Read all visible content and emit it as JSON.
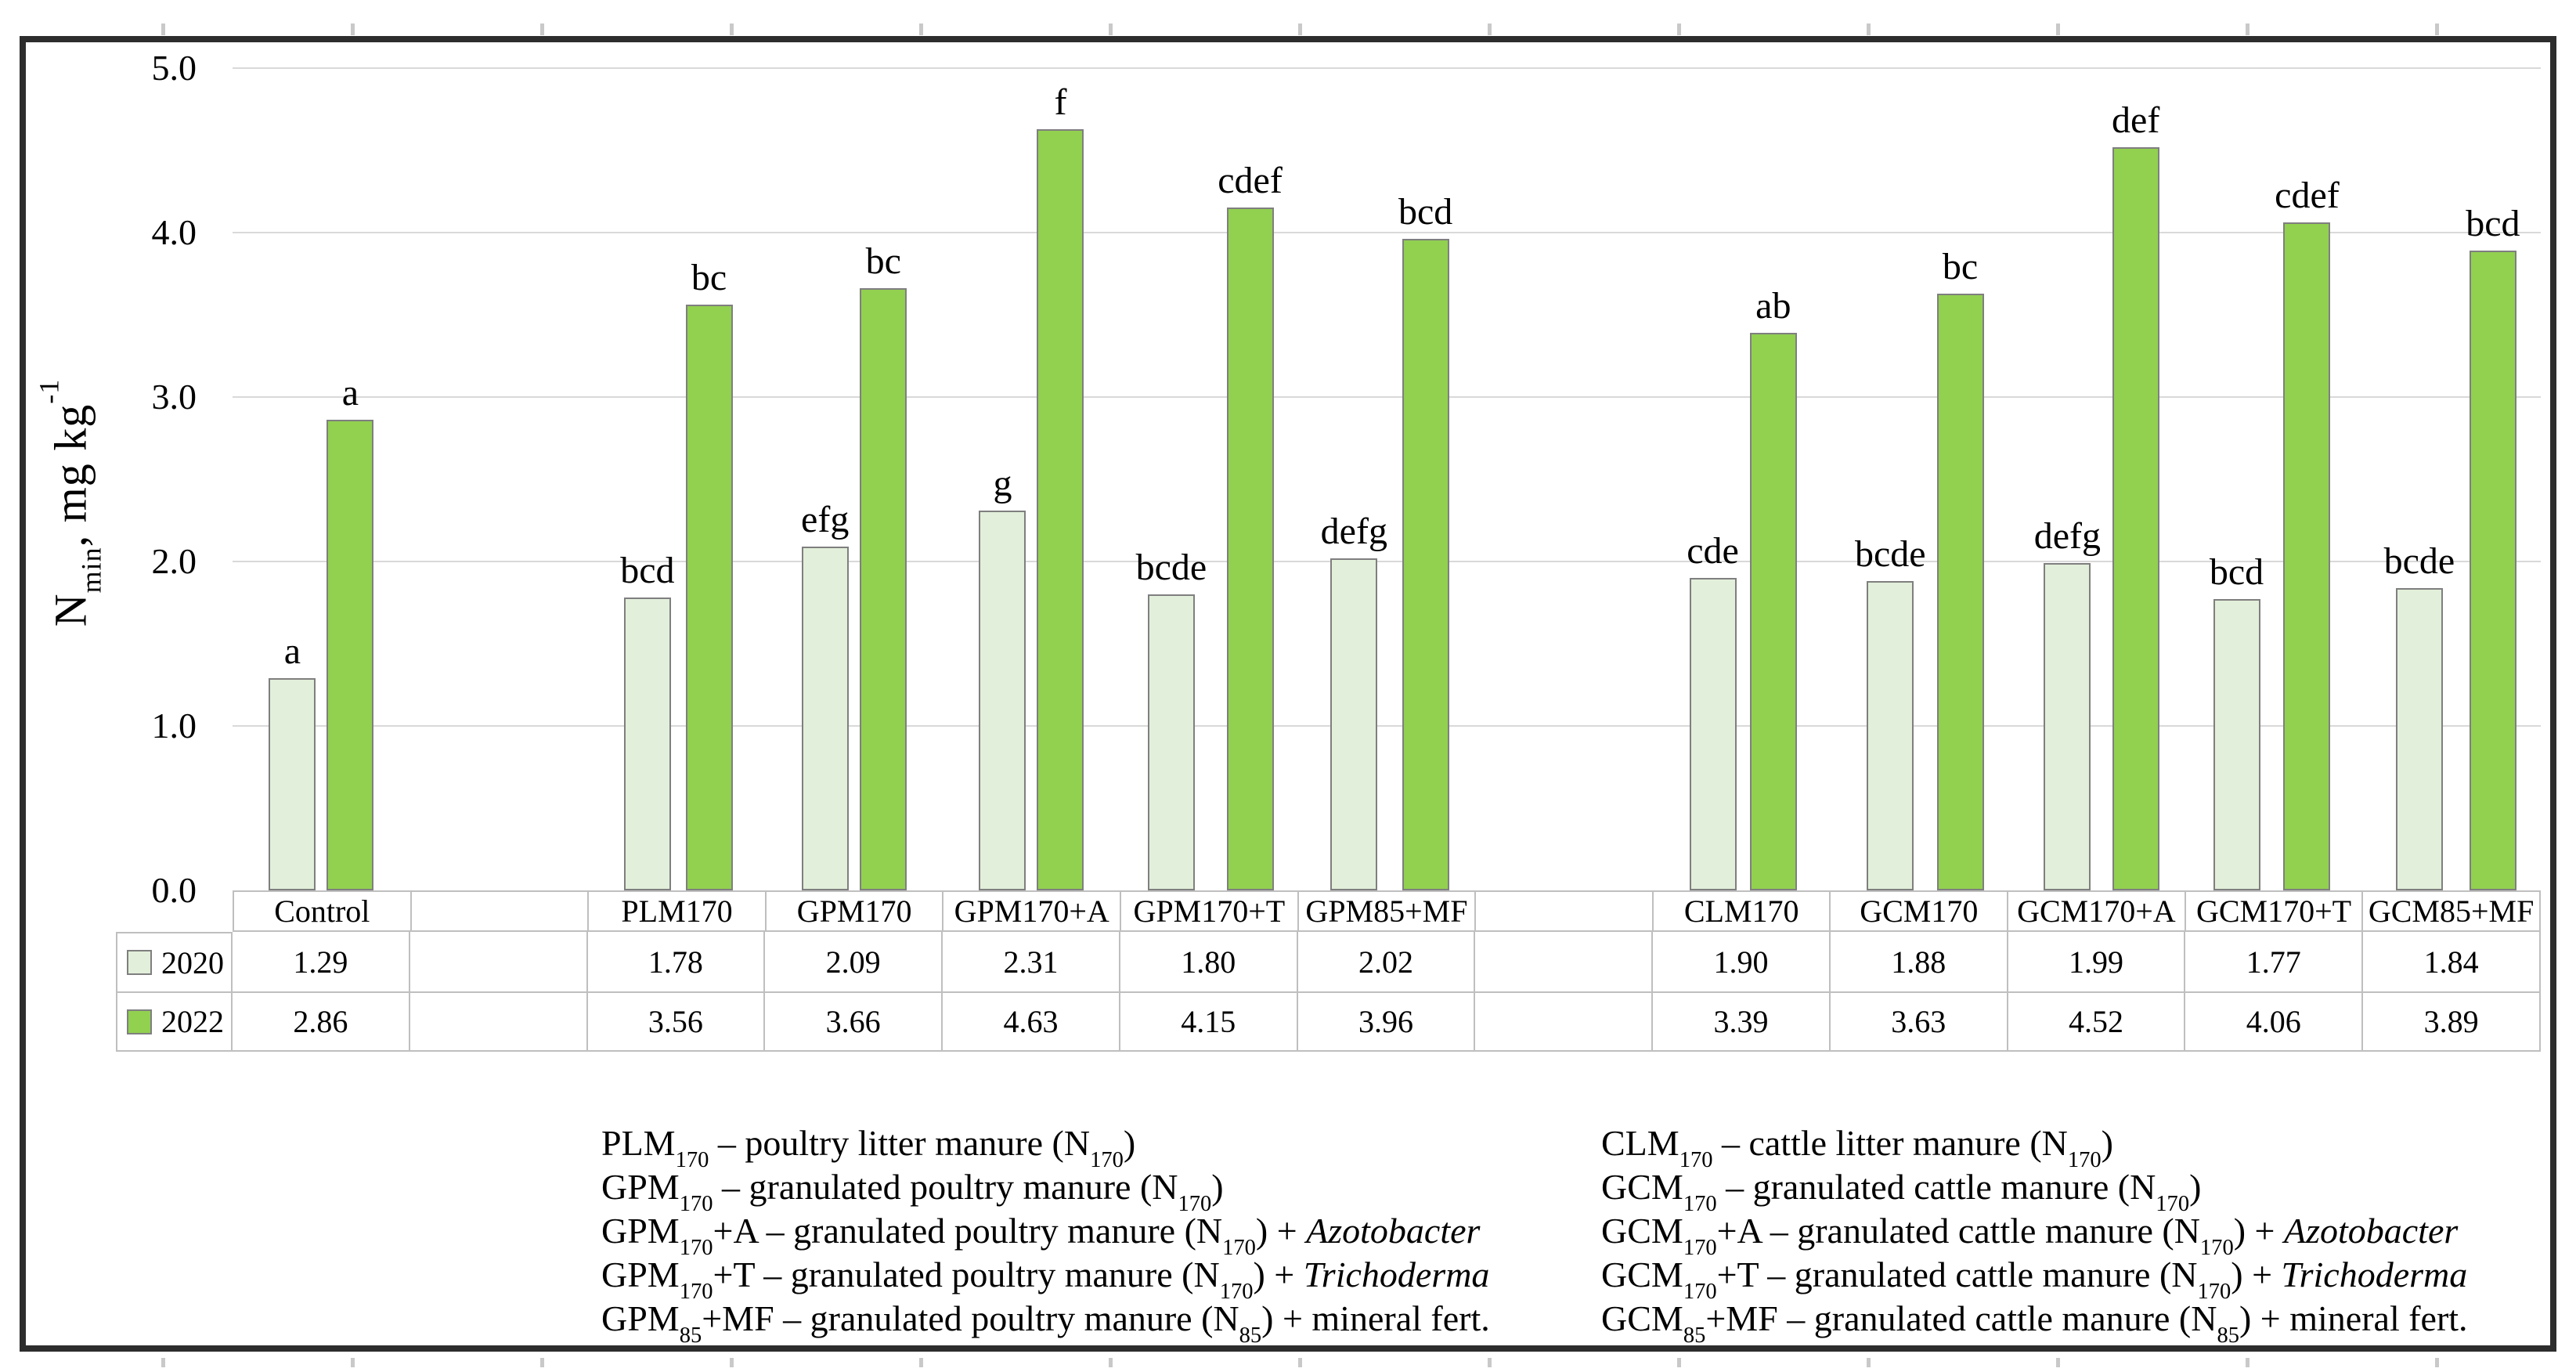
{
  "chart_data": {
    "type": "bar",
    "title": "",
    "ylabel_text": "Nmin, mg kg-1",
    "ylabel_segments": [
      {
        "t": "N"
      },
      {
        "t": "min",
        "sub": true
      },
      {
        "t": ", mg kg"
      },
      {
        "t": "-1",
        "sup": true
      }
    ],
    "ylim": [
      0,
      5
    ],
    "ytick_labels": [
      "0.0",
      "1.0",
      "2.0",
      "3.0",
      "4.0",
      "5.0"
    ],
    "grid": true,
    "legend_position": "attached-data-table-left",
    "categories": [
      "Control",
      "PLM170",
      "GPM170",
      "GPM170+A",
      "GPM170+T",
      "GPM85+MF",
      "CLM170",
      "GCM170",
      "GCM170+A",
      "GCM170+T",
      "GCM85+MF"
    ],
    "column_slots": [
      0,
      null,
      1,
      2,
      3,
      4,
      5,
      null,
      6,
      7,
      8,
      9,
      10
    ],
    "bar_border_color": "#7f7f7f",
    "series": [
      {
        "name": "2020",
        "color": "#e2efda",
        "values": [
          1.29,
          1.78,
          2.09,
          2.31,
          1.8,
          2.02,
          1.9,
          1.88,
          1.99,
          1.77,
          1.84
        ],
        "value_labels": [
          "1.29",
          "1.78",
          "2.09",
          "2.31",
          "1.80",
          "2.02",
          "1.90",
          "1.88",
          "1.99",
          "1.77",
          "1.84"
        ],
        "sig_letters": [
          "a",
          "bcd",
          "efg",
          "g",
          "bcde",
          "defg",
          "cde",
          "bcde",
          "defg",
          "bcd",
          "bcde"
        ]
      },
      {
        "name": "2022",
        "color": "#92d050",
        "values": [
          2.86,
          3.56,
          3.66,
          4.63,
          4.15,
          3.96,
          3.39,
          3.63,
          4.52,
          4.06,
          3.89
        ],
        "value_labels": [
          "2.86",
          "3.56",
          "3.66",
          "4.63",
          "4.15",
          "3.96",
          "3.39",
          "3.63",
          "4.52",
          "4.06",
          "3.89"
        ],
        "sig_letters": [
          "a",
          "bc",
          "bc",
          "f",
          "cdef",
          "bcd",
          "ab",
          "bc",
          "def",
          "cdef",
          "bcd"
        ]
      }
    ]
  },
  "notes": {
    "left": [
      [
        {
          "t": "PLM"
        },
        {
          "t": "170",
          "sub": true
        },
        {
          "t": " – poultry litter manure (N"
        },
        {
          "t": "170",
          "sub": true
        },
        {
          "t": ")"
        }
      ],
      [
        {
          "t": "GPM"
        },
        {
          "t": "170",
          "sub": true
        },
        {
          "t": " – granulated poultry manure (N"
        },
        {
          "t": "170",
          "sub": true
        },
        {
          "t": ")"
        }
      ],
      [
        {
          "t": "GPM"
        },
        {
          "t": "170",
          "sub": true
        },
        {
          "t": "+A – granulated poultry manure (N"
        },
        {
          "t": "170",
          "sub": true
        },
        {
          "t": ") + "
        },
        {
          "t": "Azotobacter",
          "i": true
        }
      ],
      [
        {
          "t": "GPM"
        },
        {
          "t": "170",
          "sub": true
        },
        {
          "t": "+T – granulated poultry manure (N"
        },
        {
          "t": "170",
          "sub": true
        },
        {
          "t": ") + "
        },
        {
          "t": "Trichoderma",
          "i": true
        }
      ],
      [
        {
          "t": "GPM"
        },
        {
          "t": "85",
          "sub": true
        },
        {
          "t": "+MF – granulated poultry manure (N"
        },
        {
          "t": "85",
          "sub": true
        },
        {
          "t": ") + mineral fert."
        }
      ]
    ],
    "right": [
      [
        {
          "t": "CLM"
        },
        {
          "t": "170",
          "sub": true
        },
        {
          "t": " – cattle litter manure (N"
        },
        {
          "t": "170",
          "sub": true
        },
        {
          "t": ")"
        }
      ],
      [
        {
          "t": "GCM"
        },
        {
          "t": "170",
          "sub": true
        },
        {
          "t": " – granulated cattle manure (N"
        },
        {
          "t": "170",
          "sub": true
        },
        {
          "t": ")"
        }
      ],
      [
        {
          "t": "GCM"
        },
        {
          "t": "170",
          "sub": true
        },
        {
          "t": "+A – granulated cattle manure (N"
        },
        {
          "t": "170",
          "sub": true
        },
        {
          "t": ") + "
        },
        {
          "t": "Azotobacter",
          "i": true
        }
      ],
      [
        {
          "t": "GCM"
        },
        {
          "t": "170",
          "sub": true
        },
        {
          "t": "+T – granulated cattle manure (N"
        },
        {
          "t": "170",
          "sub": true
        },
        {
          "t": ") + "
        },
        {
          "t": "Trichoderma",
          "i": true
        }
      ],
      [
        {
          "t": "GCM"
        },
        {
          "t": "85",
          "sub": true
        },
        {
          "t": "+MF – granulated cattle manure (N"
        },
        {
          "t": "85",
          "sub": true
        },
        {
          "t": ") + mineral fert."
        }
      ]
    ]
  },
  "colors": {
    "series_2020": "#e2efda",
    "series_2022": "#92d050",
    "bar_border": "#7f7f7f",
    "gridline": "#d9d9d9",
    "table_border": "#bfbfbf",
    "figure_border": "#2d2d2d",
    "edge_tick": "#c9c9c9",
    "text": "#000000"
  }
}
